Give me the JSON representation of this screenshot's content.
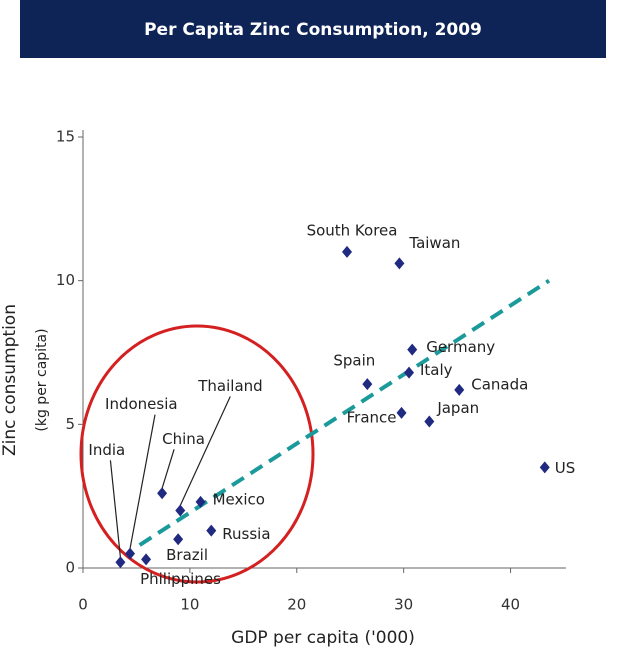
{
  "chart_data": {
    "type": "scatter",
    "title": "Per Capita Zinc Consumption, 2009",
    "xlabel": "GDP per capita ('000)",
    "ylabel": [
      "Zinc consumption",
      "(kg per capita)"
    ],
    "labels": [
      "South Korea",
      "Taiwan",
      "Germany",
      "Spain",
      "Italy",
      "Canada",
      "France",
      "Japan",
      "US",
      "Mexico",
      "Russia",
      "Brazil",
      "Philippines",
      "China",
      "Thailand",
      "Indonesia",
      "India"
    ],
    "x": [
      24.7,
      29.6,
      30.8,
      26.6,
      30.5,
      35.2,
      29.8,
      32.4,
      43.2,
      11.0,
      12.0,
      8.9,
      5.9,
      7.4,
      9.1,
      4.4,
      3.5
    ],
    "values": [
      11.0,
      10.6,
      7.6,
      6.4,
      6.8,
      6.2,
      5.4,
      5.1,
      3.5,
      2.3,
      1.3,
      1.0,
      0.3,
      2.6,
      2.0,
      0.5,
      0.2
    ],
    "color": "#1f2a80",
    "trendline": {
      "x": [
        5.3,
        43.6
      ],
      "values": [
        0.8,
        10.0
      ],
      "color": "#1a9a9a"
    },
    "xlim": [
      0,
      45
    ],
    "xticks": [
      0,
      10,
      20,
      30,
      40
    ],
    "ylim": [
      0,
      15
    ],
    "yticks": [
      0,
      5,
      10,
      15
    ]
  }
}
